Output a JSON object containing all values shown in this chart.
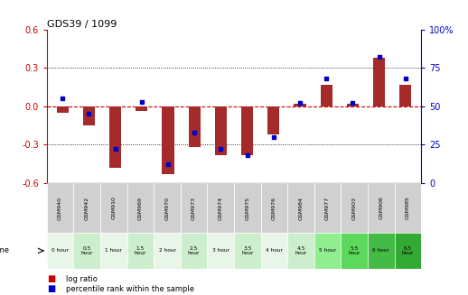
{
  "title": "GDS39 / 1099",
  "samples": [
    "GSM940",
    "GSM942",
    "GSM910",
    "GSM969",
    "GSM970",
    "GSM973",
    "GSM974",
    "GSM975",
    "GSM976",
    "GSM984",
    "GSM977",
    "GSM903",
    "GSM906",
    "GSM985"
  ],
  "time_labels": [
    "0 hour",
    "0.5\nhour",
    "1 hour",
    "1.5\nhour",
    "2 hour",
    "2.5\nhour",
    "3 hour",
    "3.5\nhour",
    "4 hour",
    "4.5\nhour",
    "5 hour",
    "5.5\nhour",
    "6 hour",
    "6.5\nhour"
  ],
  "log_ratio": [
    -0.05,
    -0.15,
    -0.48,
    -0.04,
    -0.53,
    -0.32,
    -0.38,
    -0.38,
    -0.22,
    0.02,
    0.17,
    0.02,
    0.38,
    0.17
  ],
  "percentile": [
    55,
    45,
    22,
    53,
    12,
    33,
    22,
    18,
    30,
    52,
    68,
    52,
    82,
    68
  ],
  "ylim_left": [
    -0.6,
    0.6
  ],
  "ylim_right": [
    0,
    100
  ],
  "yticks_left": [
    -0.6,
    -0.3,
    0.0,
    0.3,
    0.6
  ],
  "yticks_right": [
    0,
    25,
    50,
    75,
    100
  ],
  "bar_color": "#A52A2A",
  "dot_color": "#0000CC",
  "zero_line_color": "#CC0000",
  "grid_color": "#000000",
  "bg_color": "#FFFFFF",
  "plot_bg": "#FFFFFF",
  "legend_log_color": "#CC0000",
  "legend_dot_color": "#0000CC",
  "time_bg_even": "#E8F5E8",
  "time_bg_odd": "#CCEECC",
  "time_bg_green5": "#90EE90",
  "time_bg_green55": "#5DD85D",
  "time_bg_green6": "#44BB44",
  "time_bg_green65": "#33AA33"
}
